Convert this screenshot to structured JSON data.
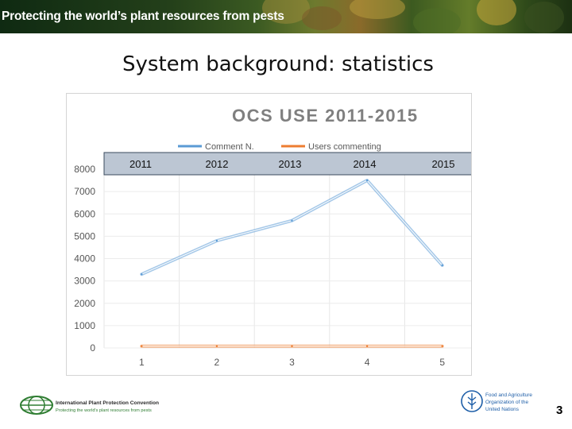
{
  "banner": {
    "title": "Protecting the world’s plant resources from pests"
  },
  "slide": {
    "title": "System background: statistics",
    "page_number": "3"
  },
  "footer": {
    "ippc_name": "International Plant Protection Convention",
    "ippc_tagline": "Protecting the world's plant resources from pests",
    "fao_line1": "Food and Agriculture",
    "fao_line2": "Organization of the",
    "fao_line3": "United Nations"
  },
  "chart_data": {
    "type": "line",
    "title": "OCS USE 2011-2015",
    "x": [
      1,
      2,
      3,
      4,
      5
    ],
    "x_tick_labels": [
      "1",
      "2",
      "3",
      "4",
      "5"
    ],
    "year_labels": [
      "2011",
      "2012",
      "2013",
      "2014",
      "2015"
    ],
    "ylim": [
      0,
      8000
    ],
    "y_ticks": [
      0,
      1000,
      2000,
      3000,
      4000,
      5000,
      6000,
      7000,
      8000
    ],
    "grid": true,
    "legend_position": "top",
    "series": [
      {
        "name": "Comment N.",
        "color": "#5b9bd5",
        "values": [
          3300,
          4800,
          5700,
          7500,
          3700
        ]
      },
      {
        "name": "Users commenting",
        "color": "#ed7d31",
        "values": [
          80,
          80,
          80,
          80,
          80
        ]
      }
    ]
  }
}
